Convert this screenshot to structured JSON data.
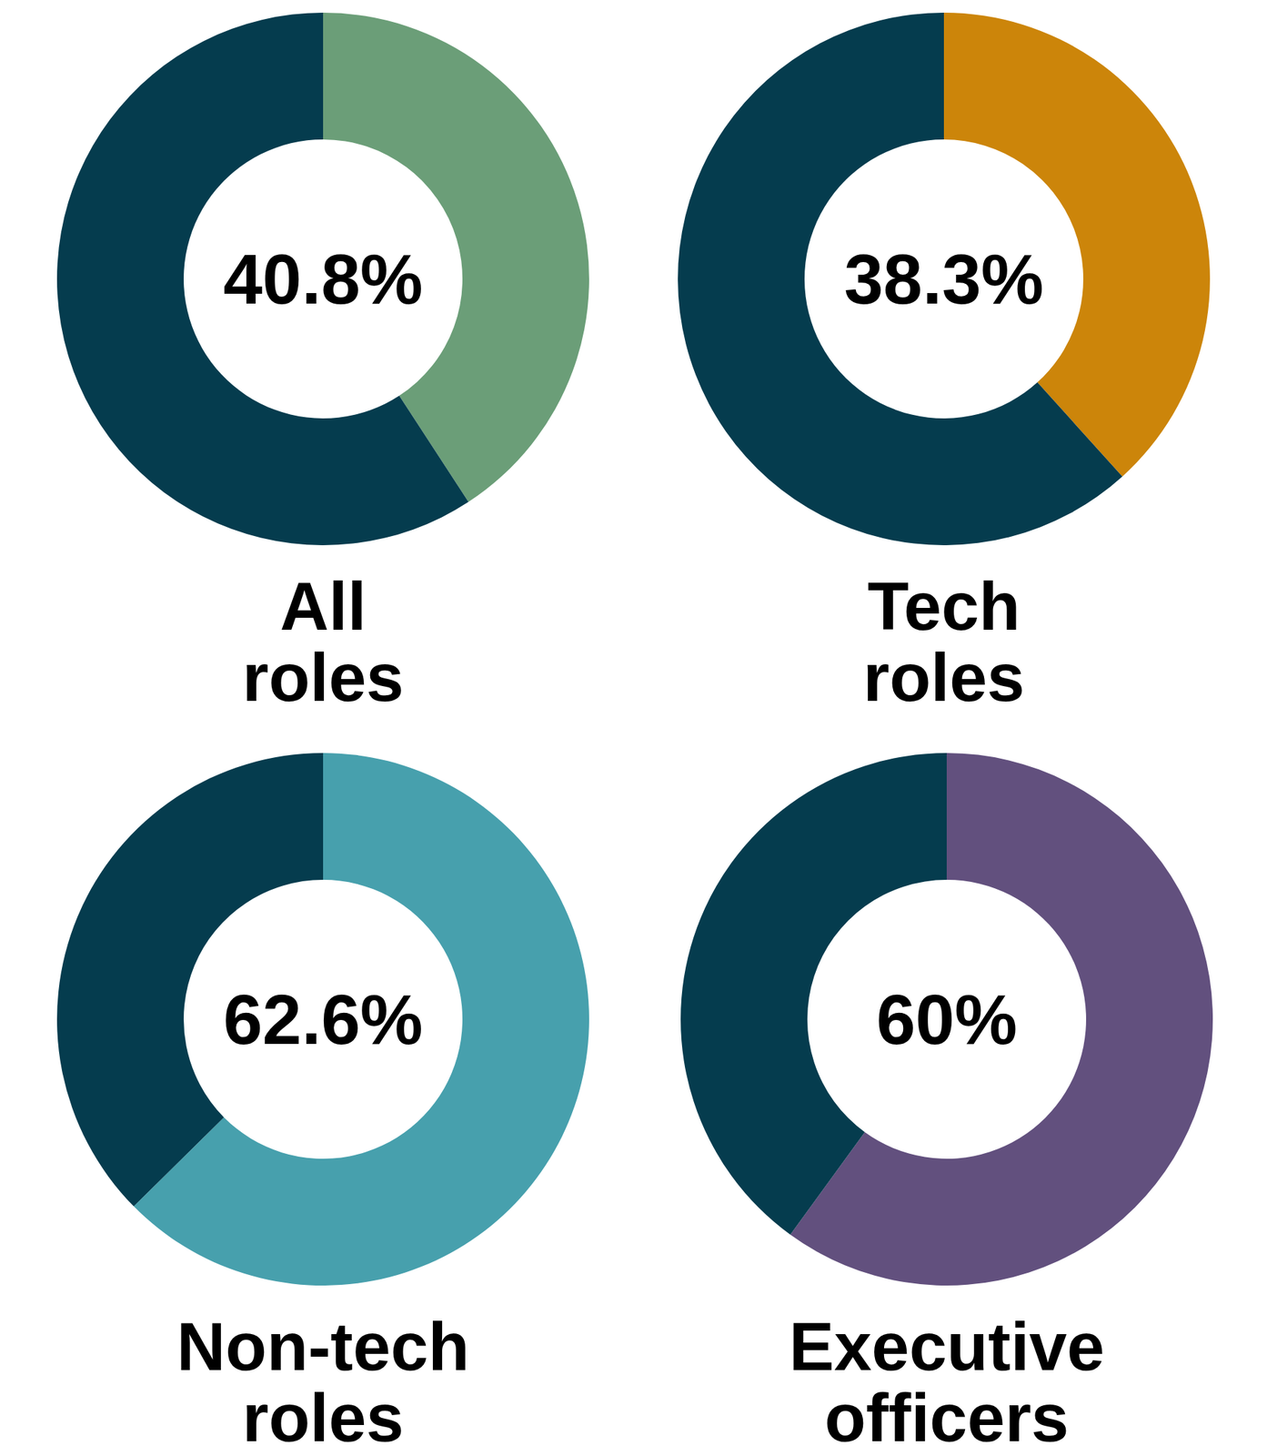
{
  "chart_data": [
    {
      "type": "donut",
      "title": "All roles",
      "values": [
        40.8,
        59.2
      ],
      "value_labels": [
        "40.8%",
        null
      ],
      "colors": [
        "#6b9e78",
        "#053c4e"
      ]
    },
    {
      "type": "donut",
      "title": "Tech roles",
      "values": [
        38.3,
        61.7
      ],
      "value_labels": [
        "38.3%",
        null
      ],
      "colors": [
        "#cc850a",
        "#053c4e"
      ]
    },
    {
      "type": "donut",
      "title": "Non-tech roles",
      "values": [
        62.6,
        37.4
      ],
      "value_labels": [
        "62.6%",
        null
      ],
      "colors": [
        "#47a0ad",
        "#053c4e"
      ]
    },
    {
      "type": "donut",
      "title": "Executive officers",
      "values": [
        60,
        40
      ],
      "value_labels": [
        "60%",
        null
      ],
      "colors": [
        "#62507e",
        "#053c4e"
      ]
    }
  ]
}
